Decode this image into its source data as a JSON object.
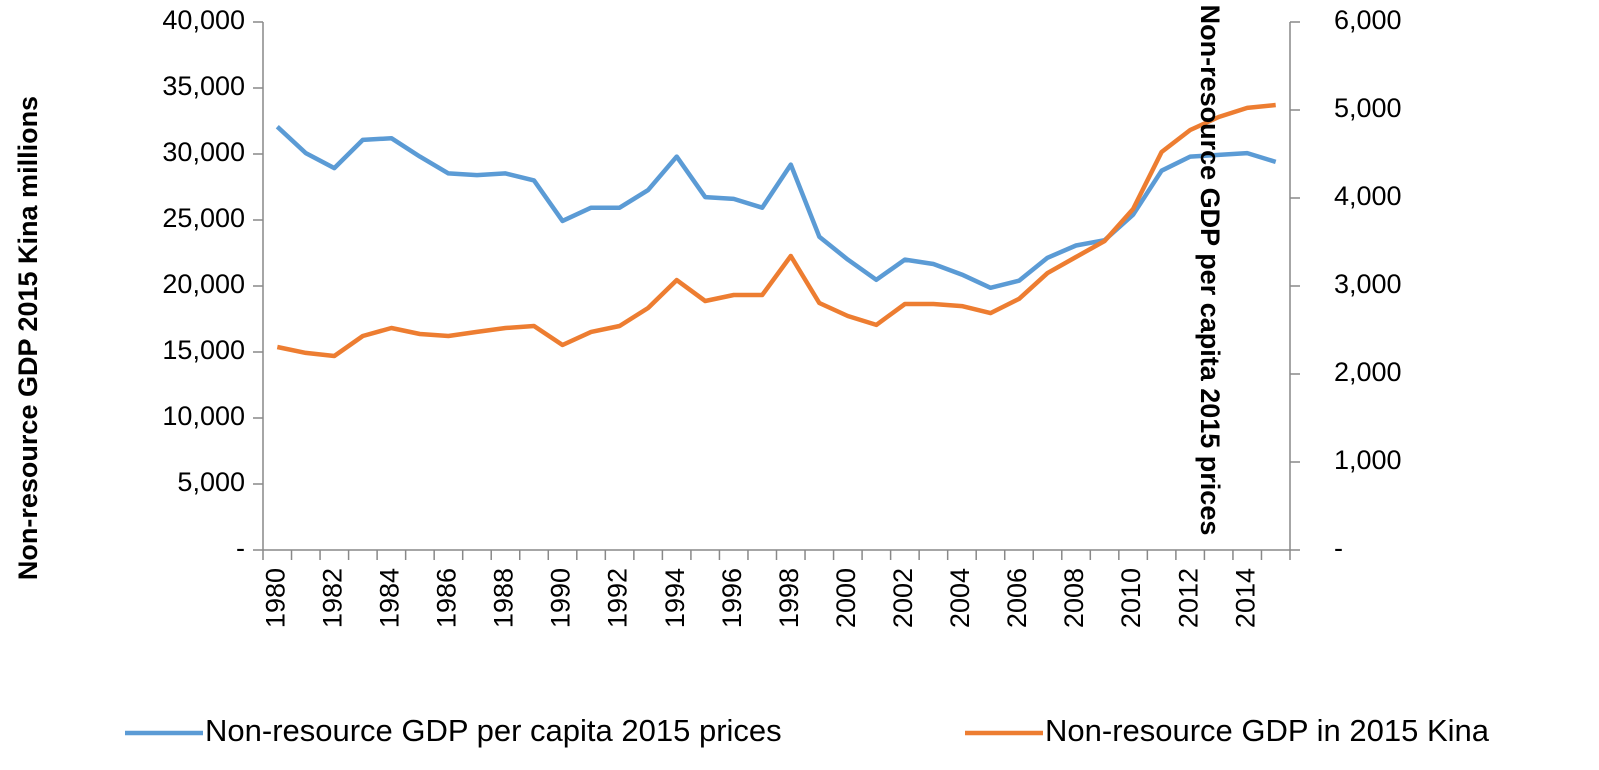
{
  "chart_data": {
    "type": "line",
    "y_label": "Non-resource GDP 2015 Kina millions",
    "y2_label": "Non-resource GDP per capita 2015 prices",
    "categories": [
      "1980",
      null,
      "1982",
      null,
      "1984",
      null,
      "1986",
      null,
      "1988",
      null,
      "1990",
      null,
      "1992",
      null,
      "1994",
      null,
      "1996",
      null,
      "1998",
      null,
      "2000",
      null,
      "2002",
      null,
      "2004",
      null,
      "2006",
      null,
      "2008",
      null,
      "2010",
      null,
      "2012",
      null,
      "2014",
      null
    ],
    "ylim": [
      0,
      40000
    ],
    "yticks": [
      {
        "value": 0,
        "label": "-"
      },
      {
        "value": 5000,
        "label": "5,000"
      },
      {
        "value": 10000,
        "label": "10,000"
      },
      {
        "value": 15000,
        "label": "15,000"
      },
      {
        "value": 20000,
        "label": "20,000"
      },
      {
        "value": 25000,
        "label": "25,000"
      },
      {
        "value": 30000,
        "label": "30,000"
      },
      {
        "value": 35000,
        "label": "35,000"
      },
      {
        "value": 40000,
        "label": "40,000"
      }
    ],
    "y2lim": [
      0,
      6000
    ],
    "y2ticks": [
      {
        "value": 0,
        "label": "-"
      },
      {
        "value": 1000,
        "label": "1,000"
      },
      {
        "value": 2000,
        "label": "2,000"
      },
      {
        "value": 3000,
        "label": "3,000"
      },
      {
        "value": 4000,
        "label": "4,000"
      },
      {
        "value": 5000,
        "label": "5,000"
      },
      {
        "value": 6000,
        "label": "6,000"
      }
    ],
    "grid": false,
    "legend": "bottom",
    "series": [
      {
        "name": "Non-resource GDP per capita 2015 prices",
        "color": "#5b9bd5",
        "axis": "y2",
        "values": [
          4810,
          4510,
          4340,
          4660,
          4680,
          4470,
          4280,
          4260,
          4280,
          4200,
          3740,
          3890,
          3890,
          4090,
          4470,
          4010,
          3990,
          3890,
          4380,
          3560,
          3300,
          3070,
          3300,
          3250,
          3130,
          2980,
          3060,
          3320,
          3460,
          3520,
          3810,
          4310,
          4470,
          4490,
          4510,
          4410
        ]
      },
      {
        "name": "Non-resource GDP in 2015 Kina",
        "color": "#ed7d31",
        "axis": "y",
        "values": [
          15380,
          14930,
          14700,
          16210,
          16820,
          16360,
          16210,
          16520,
          16820,
          16970,
          15530,
          16520,
          16970,
          18330,
          20450,
          18860,
          19320,
          19320,
          22270,
          18710,
          17730,
          17050,
          18640,
          18640,
          18480,
          17950,
          19020,
          20980,
          22200,
          23410,
          25830,
          30150,
          31820,
          32800,
          33490,
          33710
        ]
      }
    ]
  }
}
